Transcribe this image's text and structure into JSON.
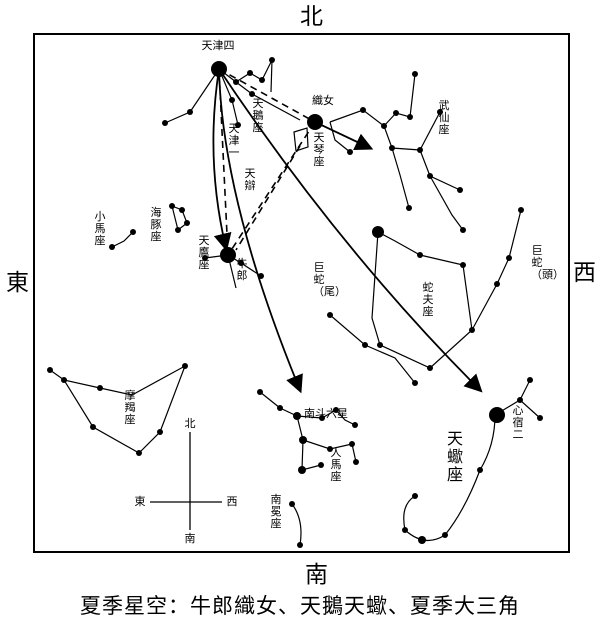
{
  "directions": {
    "north": "北",
    "south": "南",
    "east": "東",
    "west": "西"
  },
  "stars": {
    "deneb": "天津四",
    "vega": "織女",
    "altair": "牛郎",
    "antares": "心宿二"
  },
  "constellations": {
    "cygnus": "天鵝座",
    "lyra": "天琴座",
    "aquila": "天鷹座",
    "scorpius": "天蠍座",
    "hercules": "武仙座",
    "ophiuchus": "蛇夫座",
    "serpens_head": "巨蛇（頭）",
    "serpens_tail": "巨蛇（尾）",
    "delphinus": "海豚座",
    "equuleus": "小馬座",
    "capricornus": "摩羯座",
    "sagittarius": "人馬座",
    "corona_australis": "南冕座",
    "nandou": "南斗六星",
    "tianjin_yi": "天津一",
    "tianbian": "天辯"
  },
  "compass": {
    "north": "北",
    "south": "南",
    "east": "東",
    "west": "西"
  },
  "caption": "夏季星空：牛郎織女、天鵝天蠍、夏季大三角",
  "colors": {
    "ink": "#000000",
    "background": "#ffffff"
  }
}
